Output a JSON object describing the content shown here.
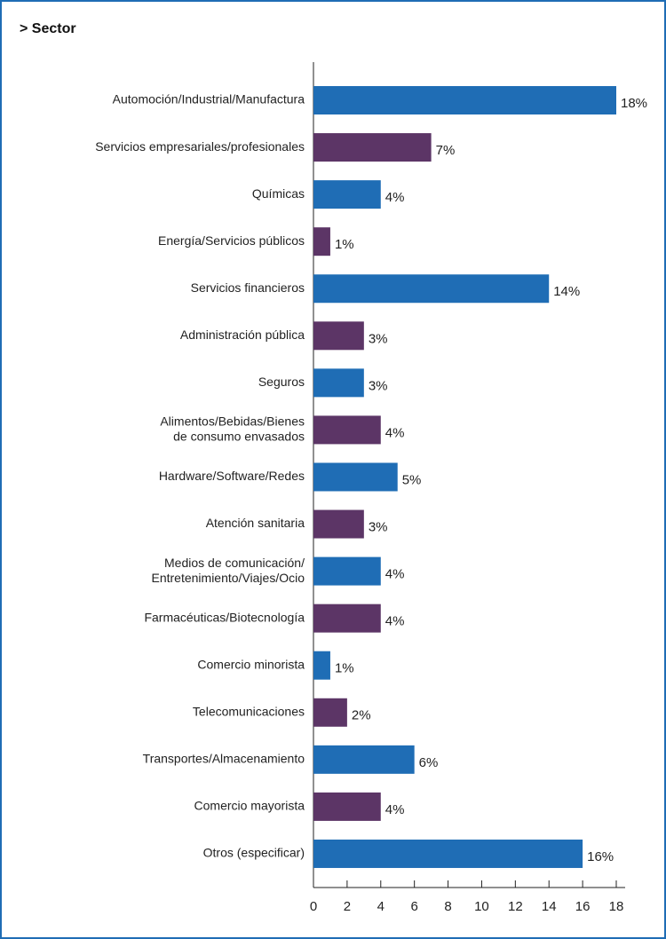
{
  "chart_data": {
    "type": "bar",
    "orientation": "horizontal",
    "title": "> Sector",
    "categories": [
      "Automoción/Industrial/Manufactura",
      "Servicios empresariales/profesionales",
      "Químicas",
      "Energía/Servicios públicos",
      "Servicios financieros",
      "Administración pública",
      "Seguros",
      [
        "Alimentos/Bebidas/Bienes",
        "de consumo envasados"
      ],
      "Hardware/Software/Redes",
      "Atención sanitaria",
      [
        "Medios de comunicación/",
        "Entretenimiento/Viajes/Ocio"
      ],
      "Farmacéuticas/Biotecnología",
      "Comercio minorista",
      "Telecomunicaciones",
      "Transportes/Almacenamiento",
      "Comercio mayorista",
      "Otros (especificar)"
    ],
    "values": [
      18,
      7,
      4,
      1,
      14,
      3,
      3,
      4,
      5,
      3,
      4,
      4,
      1,
      2,
      6,
      4,
      16
    ],
    "value_labels": [
      "18%",
      "7%",
      "4%",
      "1%",
      "14%",
      "3%",
      "3%",
      "4%",
      "5%",
      "3%",
      "4%",
      "4%",
      "1%",
      "2%",
      "6%",
      "4%",
      "16%"
    ],
    "colors": [
      "#1f6db5",
      "#5c3566",
      "#1f6db5",
      "#5c3566",
      "#1f6db5",
      "#5c3566",
      "#1f6db5",
      "#5c3566",
      "#1f6db5",
      "#5c3566",
      "#1f6db5",
      "#5c3566",
      "#1f6db5",
      "#5c3566",
      "#1f6db5",
      "#5c3566",
      "#1f6db5"
    ],
    "xlim": [
      0,
      18
    ],
    "xticks": [
      0,
      2,
      4,
      6,
      8,
      10,
      12,
      14,
      16,
      18
    ],
    "grid": false
  }
}
